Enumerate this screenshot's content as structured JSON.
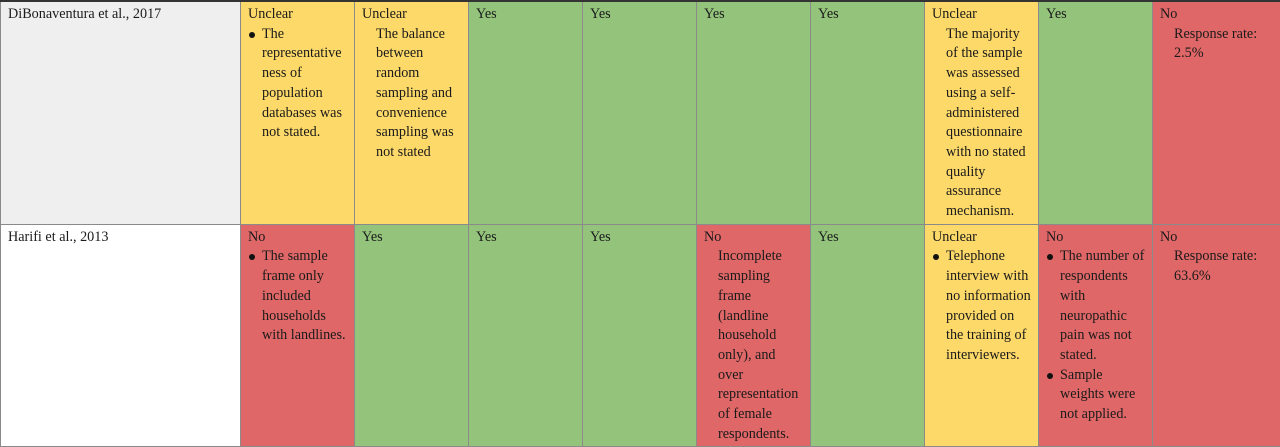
{
  "rows": [
    {
      "study": "DiBonaventura et al., 2017",
      "cells": [
        {
          "status": "Unclear",
          "bullets": [
            "The representative ness of population databases was not stated."
          ],
          "note": ""
        },
        {
          "status": "Unclear",
          "bullets": [],
          "note": "The balance between random sampling and convenience sampling was not stated"
        },
        {
          "status": "Yes",
          "bullets": [],
          "note": ""
        },
        {
          "status": "Yes",
          "bullets": [],
          "note": ""
        },
        {
          "status": "Yes",
          "bullets": [],
          "note": ""
        },
        {
          "status": "Yes",
          "bullets": [],
          "note": ""
        },
        {
          "status": "Unclear",
          "bullets": [],
          "note": "The majority of the sample was assessed using a self-administered questionnaire with no stated quality assurance mechanism."
        },
        {
          "status": "Yes",
          "bullets": [],
          "note": ""
        },
        {
          "status": "No",
          "bullets": [],
          "note": "Response rate: 2.5%"
        }
      ]
    },
    {
      "study": "Harifi et al., 2013",
      "cells": [
        {
          "status": "No",
          "bullets": [
            "The sample frame only included households with landlines."
          ],
          "note": ""
        },
        {
          "status": "Yes",
          "bullets": [],
          "note": ""
        },
        {
          "status": "Yes",
          "bullets": [],
          "note": ""
        },
        {
          "status": "Yes",
          "bullets": [],
          "note": ""
        },
        {
          "status": "No",
          "bullets": [],
          "note": "Incomplete sampling frame (landline household only), and over representation of female respondents."
        },
        {
          "status": "Yes",
          "bullets": [],
          "note": ""
        },
        {
          "status": "Unclear",
          "bullets": [
            "Telephone interview with no information provided on the training of interviewers."
          ],
          "note": ""
        },
        {
          "status": "No",
          "bullets": [
            "The number of respondents with neuropathic pain was not stated.",
            "Sample weights were not applied."
          ],
          "note": ""
        },
        {
          "status": "No",
          "bullets": [],
          "note": "Response rate: 63.6%"
        }
      ]
    }
  ]
}
